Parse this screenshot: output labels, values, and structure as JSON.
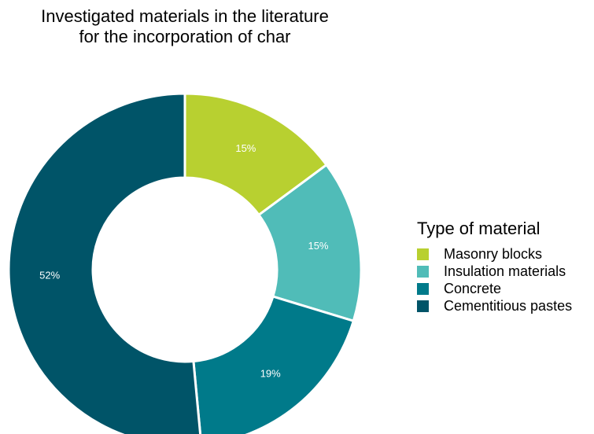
{
  "chart_data": {
    "type": "pie",
    "variant": "donut",
    "title": "Investigated materials in the literature for the incorporation of char",
    "title_lines": [
      "Investigated materials in the literature",
      "for the incorporation of char"
    ],
    "legend_title": "Type of material",
    "legend_position": "right",
    "categories": [
      "Masonry blocks",
      "Insulation materials",
      "Concrete",
      "Cementitious pastes"
    ],
    "values": [
      15,
      15,
      19,
      52
    ],
    "labels": [
      "15%",
      "15%",
      "19%",
      "52%"
    ],
    "colors": [
      "#b8d030",
      "#50bcb8",
      "#007a8a",
      "#005468"
    ]
  }
}
